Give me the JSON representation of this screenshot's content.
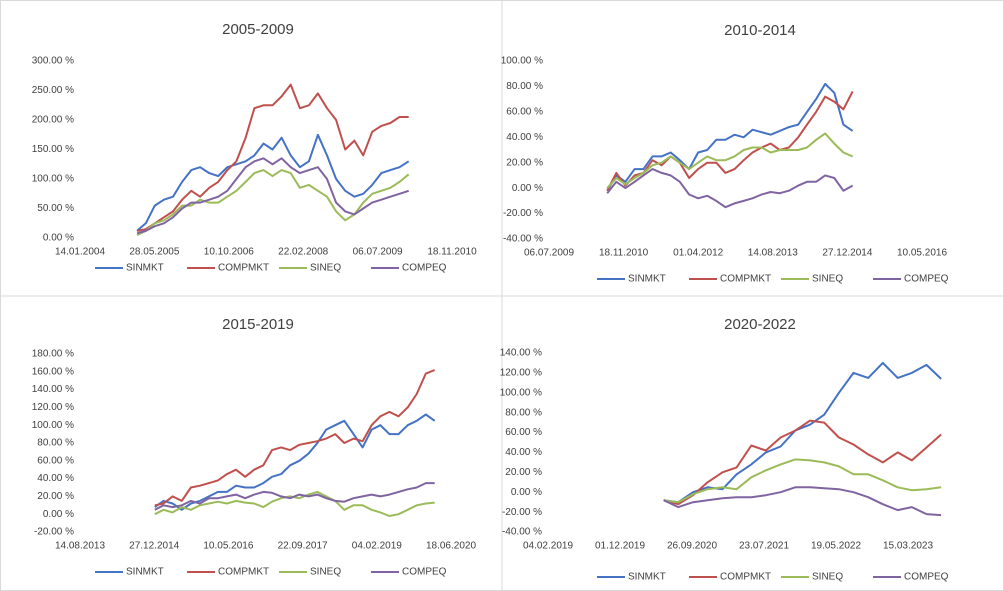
{
  "chart_data": [
    {
      "type": "line",
      "title": "2005-2009",
      "grid": false,
      "x": [
        "31.01.2005",
        "31.03.2005",
        "31.05.2005",
        "31.07.2005",
        "30.09.2005",
        "30.11.2005",
        "31.01.2006",
        "31.03.2006",
        "31.05.2006",
        "31.07.2006",
        "30.09.2006",
        "30.11.2006",
        "31.01.2007",
        "31.03.2007",
        "31.05.2007",
        "31.07.2007",
        "30.09.2007",
        "30.11.2007",
        "31.01.2008",
        "31.03.2008",
        "31.05.2008",
        "31.07.2008",
        "30.09.2008",
        "30.11.2008",
        "31.01.2009",
        "31.03.2009",
        "31.05.2009",
        "31.07.2009",
        "30.09.2009",
        "30.11.2009",
        "31.01.2010"
      ],
      "xlim": [
        "14.01.2004",
        "18.11.2010"
      ],
      "xticks": [
        "14.01.2004",
        "28.05.2005",
        "10.10.2006",
        "22.02.2008",
        "06.07.2009",
        "18.11.2010"
      ],
      "ylim": [
        0,
        300
      ],
      "yticks": [
        {
          "value": 0,
          "label": "0.00 %"
        },
        {
          "value": 50,
          "label": "50.00 %"
        },
        {
          "value": 100,
          "label": "100.00 %"
        },
        {
          "value": 150,
          "label": "150.00 %"
        },
        {
          "value": 200,
          "label": "200.00 %"
        },
        {
          "value": 250,
          "label": "250.00 %"
        },
        {
          "value": 300,
          "label": "300.00 %"
        }
      ],
      "series": [
        {
          "name": "SINMKT",
          "color": "#4472c4",
          "values": [
            12,
            25,
            55,
            65,
            70,
            95,
            115,
            120,
            110,
            105,
            120,
            125,
            130,
            140,
            160,
            150,
            170,
            140,
            120,
            130,
            175,
            140,
            100,
            80,
            70,
            75,
            90,
            110,
            115,
            120,
            130
          ]
        },
        {
          "name": "COMPMKT",
          "color": "#c0504d",
          "values": [
            12,
            15,
            25,
            35,
            45,
            65,
            80,
            70,
            85,
            95,
            115,
            130,
            170,
            220,
            225,
            225,
            240,
            260,
            220,
            225,
            245,
            220,
            200,
            150,
            165,
            140,
            180,
            190,
            195,
            205,
            205
          ]
        },
        {
          "name": "SINEQ",
          "color": "#9bbb59",
          "values": [
            5,
            12,
            25,
            30,
            40,
            55,
            55,
            65,
            60,
            60,
            70,
            80,
            95,
            110,
            115,
            105,
            115,
            110,
            85,
            90,
            80,
            70,
            45,
            30,
            40,
            60,
            75,
            80,
            85,
            95,
            108
          ]
        },
        {
          "name": "COMPEQ",
          "color": "#8064a2",
          "values": [
            8,
            12,
            20,
            25,
            35,
            50,
            60,
            60,
            65,
            70,
            80,
            100,
            120,
            130,
            135,
            125,
            135,
            120,
            110,
            115,
            120,
            100,
            60,
            45,
            40,
            50,
            60,
            65,
            70,
            75,
            80
          ]
        }
      ]
    },
    {
      "type": "line",
      "title": "2010-2014",
      "grid": false,
      "x": [
        "31.07.2010",
        "30.09.2010",
        "30.11.2010",
        "31.01.2011",
        "31.03.2011",
        "31.05.2011",
        "31.07.2011",
        "30.09.2011",
        "30.11.2011",
        "31.01.2012",
        "31.03.2012",
        "31.05.2012",
        "31.07.2012",
        "30.09.2012",
        "30.11.2012",
        "31.01.2013",
        "31.03.2013",
        "31.05.2013",
        "31.07.2013",
        "30.09.2013",
        "30.11.2013",
        "31.01.2014",
        "31.03.2014",
        "31.05.2014",
        "31.07.2014",
        "30.09.2014",
        "30.11.2014",
        "31.01.2015"
      ],
      "xlim": [
        "06.07.2009",
        "10.05.2016"
      ],
      "xticks": [
        "06.07.2009",
        "18.11.2010",
        "01.04.2012",
        "14.08.2013",
        "27.12.2014",
        "10.05.2016"
      ],
      "ylim": [
        -40,
        100
      ],
      "yticks": [
        {
          "value": -40,
          "label": "-40.00 %"
        },
        {
          "value": -20,
          "label": "-20.00 %"
        },
        {
          "value": 0,
          "label": "0.00 %"
        },
        {
          "value": 20,
          "label": "20.00 %"
        },
        {
          "value": 40,
          "label": "40.00 %"
        },
        {
          "value": 60,
          "label": "60.00 %"
        },
        {
          "value": 80,
          "label": "80.00 %"
        },
        {
          "value": 100,
          "label": "100.00 %"
        }
      ],
      "series": [
        {
          "name": "SINMKT",
          "color": "#4472c4",
          "values": [
            -2,
            10,
            5,
            15,
            15,
            25,
            25,
            28,
            22,
            15,
            28,
            30,
            38,
            38,
            42,
            40,
            46,
            44,
            42,
            45,
            48,
            50,
            60,
            70,
            82,
            75,
            50,
            45
          ]
        },
        {
          "name": "COMPMKT",
          "color": "#c0504d",
          "values": [
            -2,
            12,
            2,
            10,
            12,
            22,
            18,
            25,
            20,
            8,
            15,
            20,
            20,
            12,
            15,
            22,
            28,
            32,
            35,
            30,
            32,
            40,
            50,
            60,
            72,
            68,
            62,
            76
          ]
        },
        {
          "name": "SINEQ",
          "color": "#9bbb59",
          "values": [
            0,
            8,
            3,
            8,
            12,
            18,
            20,
            25,
            20,
            15,
            20,
            25,
            22,
            22,
            25,
            30,
            32,
            32,
            28,
            30,
            30,
            30,
            32,
            38,
            43,
            35,
            28,
            25
          ]
        },
        {
          "name": "COMPEQ",
          "color": "#8064a2",
          "values": [
            -4,
            5,
            0,
            5,
            10,
            15,
            12,
            10,
            5,
            -5,
            -8,
            -6,
            -10,
            -15,
            -12,
            -10,
            -8,
            -5,
            -3,
            -4,
            -2,
            2,
            5,
            5,
            10,
            8,
            -2,
            2
          ]
        }
      ]
    },
    {
      "type": "line",
      "title": "2015-2019",
      "grid": false,
      "x": [
        "31.12.2014",
        "28.02.2015",
        "30.04.2015",
        "30.06.2015",
        "31.08.2015",
        "31.10.2015",
        "31.12.2015",
        "29.02.2016",
        "30.04.2016",
        "30.06.2016",
        "31.08.2016",
        "31.10.2016",
        "31.12.2016",
        "28.02.2017",
        "30.04.2017",
        "30.06.2017",
        "31.08.2017",
        "31.10.2017",
        "31.12.2017",
        "28.02.2018",
        "30.04.2018",
        "30.06.2018",
        "31.08.2018",
        "31.10.2018",
        "31.12.2018",
        "28.02.2019",
        "30.04.2019",
        "30.06.2019",
        "31.08.2019",
        "31.10.2019",
        "31.12.2019",
        "29.02.2020"
      ],
      "xlim": [
        "14.08.2013",
        "18.06.2020"
      ],
      "xticks": [
        "14.08.2013",
        "27.12.2014",
        "10.05.2016",
        "22.09.2017",
        "04.02.2019",
        "18.06.2020"
      ],
      "ylim": [
        -20,
        180
      ],
      "yticks": [
        {
          "value": -20,
          "label": "-20.00 %"
        },
        {
          "value": 0,
          "label": "0.00 %"
        },
        {
          "value": 20,
          "label": "20.00 %"
        },
        {
          "value": 40,
          "label": "40.00 %"
        },
        {
          "value": 60,
          "label": "60.00 %"
        },
        {
          "value": 80,
          "label": "80.00 %"
        },
        {
          "value": 100,
          "label": "100.00 %"
        },
        {
          "value": 120,
          "label": "120.00 %"
        },
        {
          "value": 140,
          "label": "140.00 %"
        },
        {
          "value": 160,
          "label": "160.00 %"
        },
        {
          "value": 180,
          "label": "180.00 %"
        }
      ],
      "series": [
        {
          "name": "SINMKT",
          "color": "#4472c4",
          "values": [
            8,
            15,
            12,
            5,
            12,
            15,
            20,
            25,
            25,
            32,
            30,
            30,
            35,
            42,
            45,
            55,
            60,
            68,
            80,
            95,
            100,
            105,
            90,
            75,
            95,
            100,
            90,
            90,
            100,
            105,
            112,
            105
          ]
        },
        {
          "name": "COMPMKT",
          "color": "#c0504d",
          "values": [
            10,
            12,
            20,
            15,
            30,
            32,
            35,
            38,
            45,
            50,
            42,
            50,
            55,
            72,
            75,
            72,
            78,
            80,
            82,
            85,
            90,
            80,
            85,
            82,
            100,
            110,
            115,
            110,
            120,
            135,
            158,
            162
          ]
        },
        {
          "name": "SINEQ",
          "color": "#9bbb59",
          "values": [
            0,
            5,
            2,
            8,
            5,
            10,
            12,
            14,
            12,
            15,
            13,
            12,
            8,
            14,
            18,
            20,
            18,
            22,
            25,
            20,
            15,
            5,
            10,
            10,
            5,
            2,
            -2,
            0,
            5,
            10,
            12,
            13
          ]
        },
        {
          "name": "COMPEQ",
          "color": "#8064a2",
          "values": [
            5,
            10,
            8,
            10,
            15,
            12,
            18,
            18,
            20,
            22,
            18,
            22,
            25,
            24,
            20,
            18,
            22,
            20,
            22,
            18,
            15,
            14,
            18,
            20,
            22,
            20,
            22,
            25,
            28,
            30,
            35,
            35
          ]
        }
      ]
    },
    {
      "type": "line",
      "title": "2020-2022",
      "grid": false,
      "x": [
        "31.05.2020",
        "31.07.2020",
        "30.09.2020",
        "30.11.2020",
        "31.01.2021",
        "31.03.2021",
        "31.05.2021",
        "31.07.2021",
        "30.09.2021",
        "30.11.2021",
        "31.01.2022",
        "31.03.2022",
        "31.05.2022",
        "31.07.2022",
        "30.09.2022",
        "30.11.2022",
        "31.01.2023",
        "31.03.2023",
        "31.05.2023",
        "31.07.2023"
      ],
      "xlim": [
        "04.02.2019",
        "15.03.2023"
      ],
      "xticks": [
        "04.02.2019",
        "01.12.2019",
        "26.09.2020",
        "23.07.2021",
        "19.05.2022",
        "15.03.2023"
      ],
      "ylim": [
        -40,
        140
      ],
      "yticks": [
        {
          "value": -40,
          "label": "-40.00 %"
        },
        {
          "value": -20,
          "label": "-20.00 %"
        },
        {
          "value": 0,
          "label": "0.00 %"
        },
        {
          "value": 20,
          "label": "20.00 %"
        },
        {
          "value": 40,
          "label": "40.00 %"
        },
        {
          "value": 60,
          "label": "60.00 %"
        },
        {
          "value": 80,
          "label": "80.00 %"
        },
        {
          "value": 100,
          "label": "100.00 %"
        },
        {
          "value": 120,
          "label": "120.00 %"
        },
        {
          "value": 140,
          "label": "140.00 %"
        }
      ],
      "series": [
        {
          "name": "SINMKT",
          "color": "#4472c4",
          "values": [
            -8,
            -10,
            0,
            5,
            3,
            18,
            28,
            40,
            46,
            62,
            68,
            78,
            100,
            120,
            115,
            130,
            115,
            120,
            128,
            114
          ]
        },
        {
          "name": "COMPMKT",
          "color": "#c0504d",
          "values": [
            -8,
            -12,
            -3,
            10,
            20,
            25,
            47,
            42,
            55,
            62,
            72,
            70,
            55,
            48,
            38,
            30,
            40,
            32,
            45,
            58
          ]
        },
        {
          "name": "SINEQ",
          "color": "#9bbb59",
          "values": [
            -8,
            -10,
            -2,
            3,
            5,
            3,
            15,
            22,
            28,
            33,
            32,
            30,
            26,
            18,
            18,
            12,
            5,
            2,
            3,
            5
          ]
        },
        {
          "name": "COMPEQ",
          "color": "#8064a2",
          "values": [
            -8,
            -15,
            -10,
            -8,
            -6,
            -5,
            -5,
            -3,
            0,
            5,
            5,
            4,
            3,
            0,
            -5,
            -12,
            -18,
            -15,
            -22,
            -23
          ]
        }
      ]
    }
  ]
}
